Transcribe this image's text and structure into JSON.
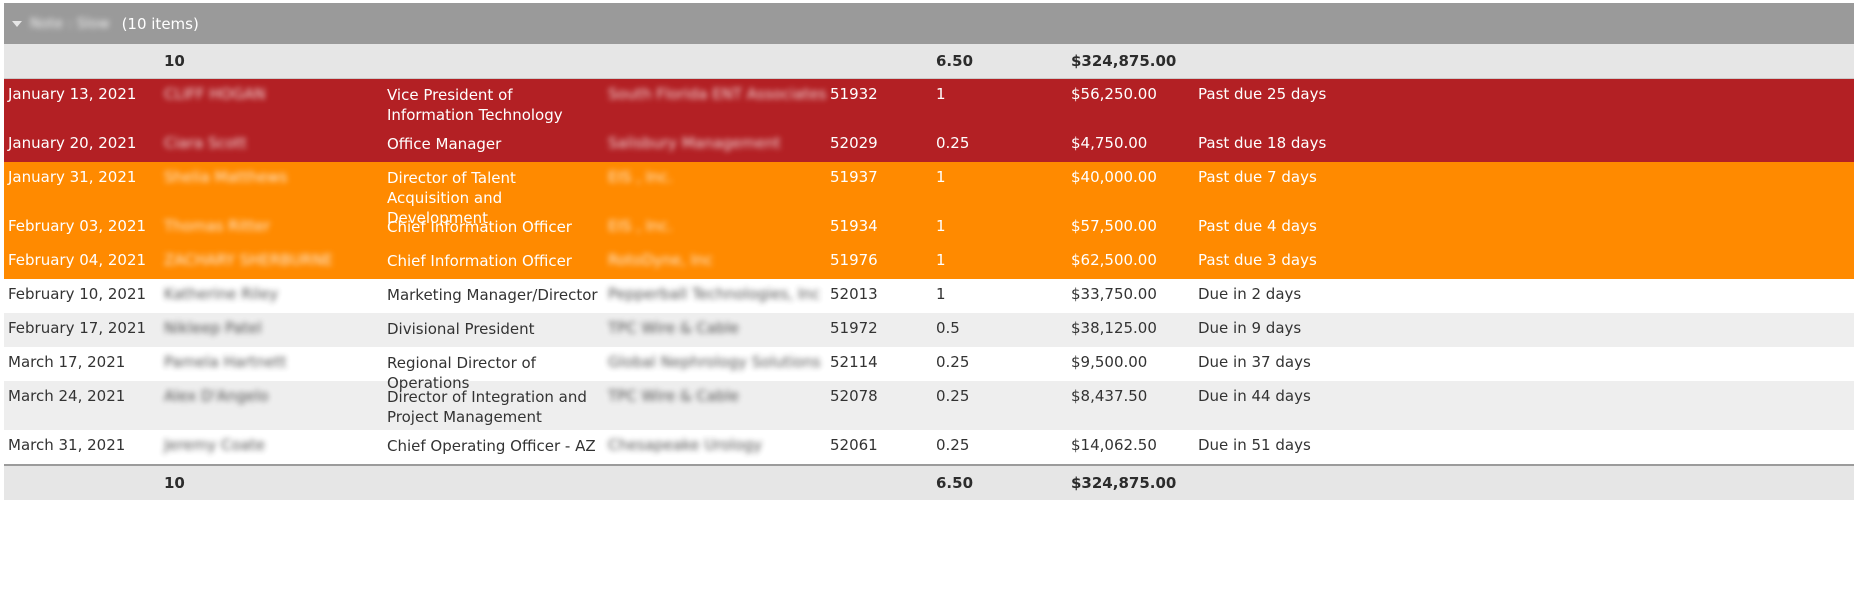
{
  "group": {
    "label": "Note : Slow",
    "count_label": "(10 items)"
  },
  "summary": {
    "count": "10",
    "quantity": "6.50",
    "amount": "$324,875.00"
  },
  "rows": [
    {
      "date": "January 13, 2021",
      "name": "CLIFF HOGAN",
      "title": "Vice President of Information Technology",
      "company": "South Florida ENT Associates",
      "id": "51932",
      "qty": "1",
      "amount": "$56,250.00",
      "status": "Past due 25 days"
    },
    {
      "date": "January 20, 2021",
      "name": "Ciara Scott",
      "title": "Office Manager",
      "company": "Salisbury Management",
      "id": "52029",
      "qty": "0.25",
      "amount": "$4,750.00",
      "status": "Past due 18 days"
    },
    {
      "date": "January 31, 2021",
      "name": "Shelia Matthews",
      "title": "Director of Talent Acquisition and Development",
      "company": "EIS , Inc.",
      "id": "51937",
      "qty": "1",
      "amount": "$40,000.00",
      "status": "Past due 7 days"
    },
    {
      "date": "February 03, 2021",
      "name": "Thomas Ritter",
      "title": "Chief Information Officer",
      "company": "EIS , Inc.",
      "id": "51934",
      "qty": "1",
      "amount": "$57,500.00",
      "status": "Past due 4 days"
    },
    {
      "date": "February 04, 2021",
      "name": "ZACHARY SHERBURNE",
      "title": "Chief Information Officer",
      "company": "RotoDyne, Inc",
      "id": "51976",
      "qty": "1",
      "amount": "$62,500.00",
      "status": "Past due 3 days"
    },
    {
      "date": "February 10, 2021",
      "name": "Katherine Riley",
      "title": "Marketing Manager/Director",
      "company": "Pepperball Technologies, Inc",
      "id": "52013",
      "qty": "1",
      "amount": "$33,750.00",
      "status": "Due in 2 days"
    },
    {
      "date": "February 17, 2021",
      "name": "Nikleep Patel",
      "title": "Divisional President",
      "company": "TPC Wire & Cable",
      "id": "51972",
      "qty": "0.5",
      "amount": "$38,125.00",
      "status": "Due in 9 days"
    },
    {
      "date": "March 17, 2021",
      "name": "Pamela Hartnett",
      "title": "Regional Director of Operations",
      "company": "Global Nephrology Solutions",
      "id": "52114",
      "qty": "0.25",
      "amount": "$9,500.00",
      "status": "Due in 37 days"
    },
    {
      "date": "March 24, 2021",
      "name": "Alex D'Angelo",
      "title": "Director of Integration and Project Management",
      "company": "TPC Wire & Cable",
      "id": "52078",
      "qty": "0.25",
      "amount": "$8,437.50",
      "status": "Due in 44 days"
    },
    {
      "date": "March 31, 2021",
      "name": "Jeremy Coate",
      "title": "Chief Operating Officer - AZ",
      "company": "Chesapeake Urology",
      "id": "52061",
      "qty": "0.25",
      "amount": "$14,062.50",
      "status": "Due in 51 days"
    }
  ],
  "colors": {
    "past_due_severe": "#b32024",
    "past_due_recent": "#ff8a00",
    "header": "#9a9a9a",
    "summary": "#e6e6e6",
    "alt_row": "#eeeeee"
  },
  "icons": {
    "group_toggle": "caret-down-icon"
  }
}
